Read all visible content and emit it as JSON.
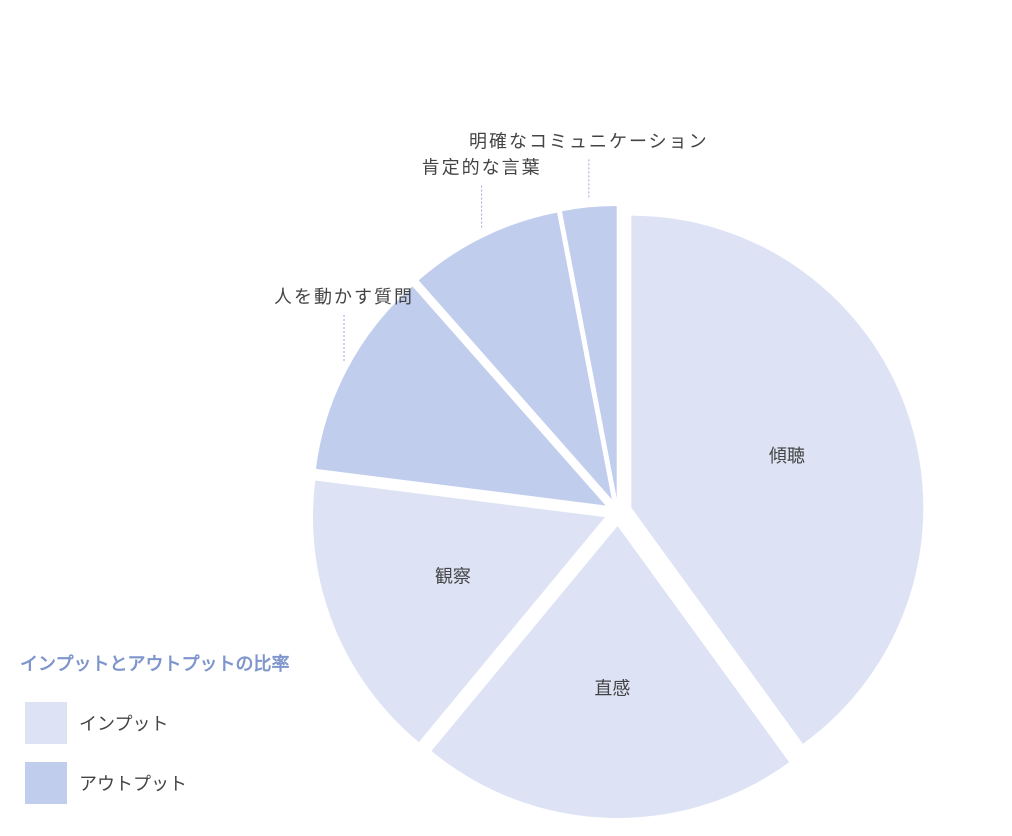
{
  "chart_data": {
    "type": "pie",
    "title": "",
    "categories": [
      "傾聴",
      "直感",
      "観察",
      "人を動かす質問",
      "肯定的な言葉",
      "明確なコミュニケーション"
    ],
    "values": [
      40,
      21,
      16,
      11.5,
      8.5,
      3
    ],
    "groups": [
      "インプット",
      "インプット",
      "インプット",
      "アウトプット",
      "アウトプット",
      "アウトプット"
    ],
    "exploded": true
  },
  "legend": {
    "title": "インプットとアウトプットの比率",
    "items": [
      {
        "label": "インプット",
        "color": "#dde3f5"
      },
      {
        "label": "アウトプット",
        "color": "#c0cded"
      }
    ]
  },
  "colors": {
    "input": "#dde3f5",
    "output": "#c0cded",
    "legend_title": "#7f96cc",
    "text": "#444444"
  }
}
